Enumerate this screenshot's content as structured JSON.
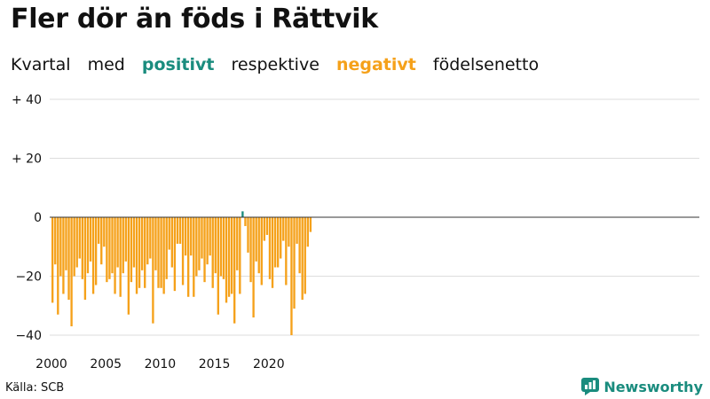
{
  "header": {
    "title": "Fler dör än föds i Rättvik",
    "subtitle_parts": [
      "Kvartal",
      "med",
      "positivt",
      "respektive",
      "negativt",
      "födelsenetto"
    ]
  },
  "footer": {
    "source": "Källa: SCB",
    "brand": "Newsworthy"
  },
  "colors": {
    "positive": "#1a8c7e",
    "negative": "#f5a11a",
    "grid": "#dddddd",
    "zero_line": "#333333",
    "brand": "#1a8c7e"
  },
  "chart_data": {
    "type": "bar",
    "x_start": "2000 Q1",
    "x_ticks": [
      "2000",
      "2005",
      "2010",
      "2015",
      "2020"
    ],
    "y_ticks": [
      "+ 40",
      "+ 20",
      "0",
      "−20",
      "−40"
    ],
    "ylim": [
      -40,
      40
    ],
    "grid": true,
    "values": [
      -29,
      -16,
      -33,
      -20,
      -26,
      -18,
      -28,
      -37,
      -20,
      -17,
      -14,
      -21,
      -28,
      -19,
      -15,
      -26,
      -23,
      -9,
      -16,
      -10,
      -22,
      -21,
      -19,
      -26,
      -17,
      -27,
      -19,
      -15,
      -33,
      -22,
      -17,
      -26,
      -24,
      -18,
      -24,
      -16,
      -14,
      -36,
      -18,
      -24,
      -24,
      -26,
      -21,
      -11,
      -17,
      -25,
      -9,
      -9,
      -23,
      -13,
      -27,
      -13,
      -27,
      -20,
      -18,
      -14,
      -22,
      -16,
      -13,
      -24,
      -19,
      -33,
      -20,
      -21,
      -29,
      -27,
      -26,
      -36,
      -18,
      -26,
      2,
      -3,
      -12,
      -22,
      -34,
      -15,
      -19,
      -23,
      -8,
      -6,
      -21,
      -24,
      -17,
      -17,
      -14,
      -8,
      -23,
      -10,
      -40,
      -31,
      -9,
      -19,
      -28,
      -26,
      -10,
      -5
    ]
  }
}
